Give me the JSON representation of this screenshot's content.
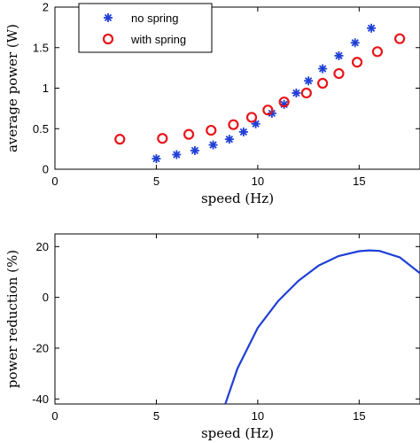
{
  "chart_data": [
    {
      "type": "scatter",
      "title": "",
      "xlabel": "speed (Hz)",
      "ylabel": "average power (W)",
      "xlim": [
        0,
        18
      ],
      "ylim": [
        0,
        2
      ],
      "xticks": [
        "0",
        "5",
        "10",
        "15"
      ],
      "yticks": [
        "0",
        "0.5",
        "1",
        "1.5",
        "2"
      ],
      "grid": false,
      "legend_position": "top-left",
      "series": [
        {
          "name": "no spring",
          "marker": "asterisk",
          "color": "#1f3fd6",
          "points": [
            [
              5.0,
              0.13
            ],
            [
              6.0,
              0.18
            ],
            [
              6.9,
              0.23
            ],
            [
              7.8,
              0.3
            ],
            [
              8.6,
              0.37
            ],
            [
              9.3,
              0.46
            ],
            [
              9.9,
              0.56
            ],
            [
              10.7,
              0.69
            ],
            [
              11.3,
              0.8
            ],
            [
              11.9,
              0.94
            ],
            [
              12.5,
              1.09
            ],
            [
              13.2,
              1.24
            ],
            [
              14.0,
              1.4
            ],
            [
              14.8,
              1.56
            ],
            [
              15.6,
              1.74
            ]
          ]
        },
        {
          "name": "with spring",
          "marker": "circle",
          "color": "#e8141a",
          "points": [
            [
              3.2,
              0.37
            ],
            [
              5.3,
              0.38
            ],
            [
              6.6,
              0.43
            ],
            [
              7.7,
              0.48
            ],
            [
              8.8,
              0.55
            ],
            [
              9.7,
              0.64
            ],
            [
              10.5,
              0.73
            ],
            [
              11.3,
              0.83
            ],
            [
              12.4,
              0.94
            ],
            [
              13.2,
              1.06
            ],
            [
              14.0,
              1.18
            ],
            [
              14.9,
              1.32
            ],
            [
              15.9,
              1.45
            ],
            [
              17.0,
              1.61
            ]
          ]
        }
      ]
    },
    {
      "type": "line",
      "title": "",
      "xlabel": "speed (Hz)",
      "ylabel": "power reduction (%)",
      "xlim": [
        0,
        18
      ],
      "ylim": [
        -42,
        25
      ],
      "xticks": [
        "0",
        "5",
        "10",
        "15"
      ],
      "yticks": [
        "20",
        "0",
        "-20",
        "-40"
      ],
      "grid": false,
      "series": [
        {
          "color": "#1f3fd6",
          "points": [
            [
              8.4,
              -42
            ],
            [
              9.0,
              -28
            ],
            [
              10.0,
              -12
            ],
            [
              11.0,
              -1.5
            ],
            [
              12.0,
              6.5
            ],
            [
              13.0,
              12.5
            ],
            [
              14.0,
              16.3
            ],
            [
              15.0,
              18.2
            ],
            [
              15.5,
              18.5
            ],
            [
              16.0,
              18.3
            ],
            [
              17.0,
              15.8
            ],
            [
              18.0,
              9.5
            ]
          ]
        }
      ]
    }
  ]
}
